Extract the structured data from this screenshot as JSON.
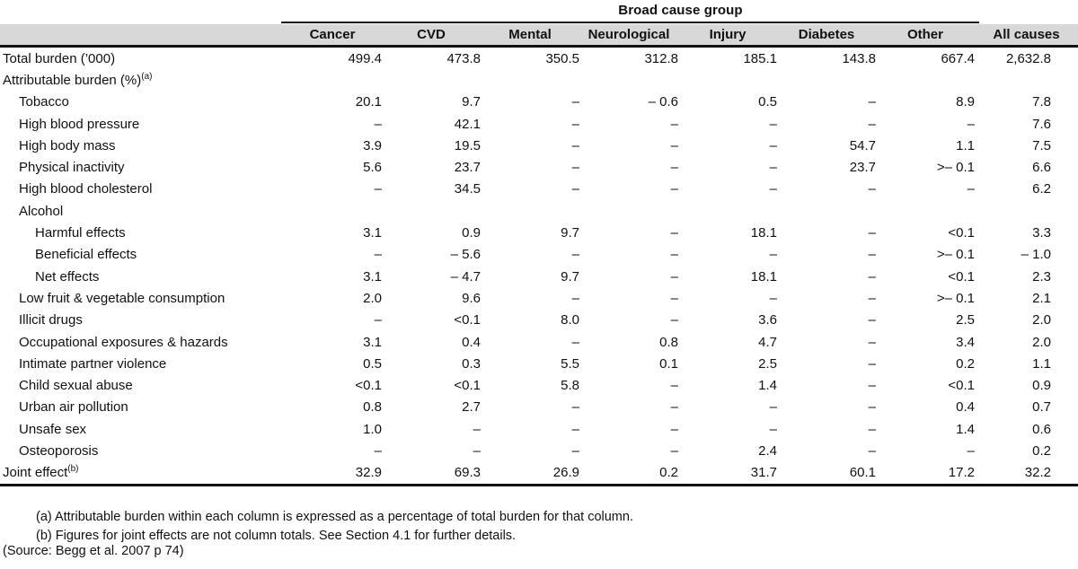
{
  "table": {
    "group_header": "Broad cause group",
    "columns": [
      "Cancer",
      "CVD",
      "Mental",
      "Neurological",
      "Injury",
      "Diabetes",
      "Other",
      "All causes"
    ],
    "rows": [
      {
        "label": "Total burden (’000)",
        "indent": 0,
        "values": [
          "499.4",
          "473.8",
          "350.5",
          "312.8",
          "185.1",
          "143.8",
          "667.4",
          "2,632.8"
        ]
      },
      {
        "label": "Attributable burden (%)",
        "sup": "(a)",
        "indent": 0,
        "values": [
          "",
          "",
          "",
          "",
          "",
          "",
          "",
          ""
        ]
      },
      {
        "label": "Tobacco",
        "indent": 1,
        "values": [
          "20.1",
          "9.7",
          "–",
          "– 0.6",
          "0.5",
          "–",
          "8.9",
          "7.8"
        ]
      },
      {
        "label": "High blood pressure",
        "indent": 1,
        "values": [
          "–",
          "42.1",
          "–",
          "–",
          "–",
          "–",
          "–",
          "7.6"
        ]
      },
      {
        "label": "High body mass",
        "indent": 1,
        "values": [
          "3.9",
          "19.5",
          "–",
          "–",
          "–",
          "54.7",
          "1.1",
          "7.5"
        ]
      },
      {
        "label": "Physical inactivity",
        "indent": 1,
        "values": [
          "5.6",
          "23.7",
          "–",
          "–",
          "–",
          "23.7",
          ">– 0.1",
          "6.6"
        ]
      },
      {
        "label": "High blood cholesterol",
        "indent": 1,
        "values": [
          "–",
          "34.5",
          "–",
          "–",
          "–",
          "–",
          "–",
          "6.2"
        ]
      },
      {
        "label": "Alcohol",
        "indent": 1,
        "values": [
          "",
          "",
          "",
          "",
          "",
          "",
          "",
          ""
        ]
      },
      {
        "label": "Harmful effects",
        "indent": 2,
        "values": [
          "3.1",
          "0.9",
          "9.7",
          "–",
          "18.1",
          "–",
          "<0.1",
          "3.3"
        ]
      },
      {
        "label": "Beneficial effects",
        "indent": 2,
        "values": [
          "–",
          "– 5.6",
          "–",
          "–",
          "–",
          "–",
          ">– 0.1",
          "– 1.0"
        ]
      },
      {
        "label": "Net effects",
        "indent": 2,
        "values": [
          "3.1",
          "– 4.7",
          "9.7",
          "–",
          "18.1",
          "–",
          "<0.1",
          "2.3"
        ]
      },
      {
        "label": "Low fruit & vegetable consumption",
        "indent": 1,
        "values": [
          "2.0",
          "9.6",
          "–",
          "–",
          "–",
          "–",
          ">– 0.1",
          "2.1"
        ]
      },
      {
        "label": "Illicit drugs",
        "indent": 1,
        "values": [
          "–",
          "<0.1",
          "8.0",
          "–",
          "3.6",
          "–",
          "2.5",
          "2.0"
        ]
      },
      {
        "label": "Occupational exposures & hazards",
        "indent": 1,
        "values": [
          "3.1",
          "0.4",
          "–",
          "0.8",
          "4.7",
          "–",
          "3.4",
          "2.0"
        ]
      },
      {
        "label": "Intimate partner violence",
        "indent": 1,
        "values": [
          "0.5",
          "0.3",
          "5.5",
          "0.1",
          "2.5",
          "–",
          "0.2",
          "1.1"
        ]
      },
      {
        "label": "Child sexual abuse",
        "indent": 1,
        "values": [
          "<0.1",
          "<0.1",
          "5.8",
          "–",
          "1.4",
          "–",
          "<0.1",
          "0.9"
        ]
      },
      {
        "label": "Urban air pollution",
        "indent": 1,
        "values": [
          "0.8",
          "2.7",
          "–",
          "–",
          "–",
          "–",
          "0.4",
          "0.7"
        ]
      },
      {
        "label": "Unsafe sex",
        "indent": 1,
        "values": [
          "1.0",
          "–",
          "–",
          "–",
          "–",
          "–",
          "1.4",
          "0.6"
        ]
      },
      {
        "label": "Osteoporosis",
        "indent": 1,
        "values": [
          "–",
          "–",
          "–",
          "–",
          "2.4",
          "–",
          "–",
          "0.2"
        ]
      },
      {
        "label": "Joint effect",
        "sup": "(b)",
        "indent": 0,
        "values": [
          "32.9",
          "69.3",
          "26.9",
          "0.2",
          "31.7",
          "60.1",
          "17.2",
          "32.2"
        ]
      }
    ]
  },
  "footnotes": [
    "(a) Attributable burden within each column is expressed as a percentage of total burden for that column.",
    "(b) Figures for joint effects are not column totals. See Section 4.1 for further details."
  ],
  "source": "(Source: Begg et al. 2007 p 74)"
}
